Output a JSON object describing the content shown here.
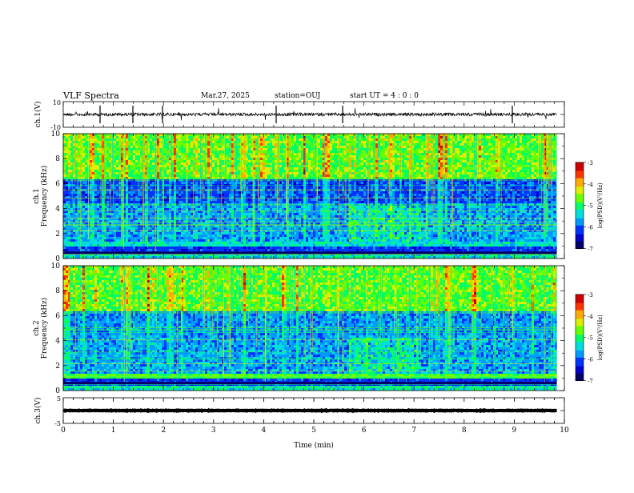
{
  "header": {
    "title": "VLF Spectra",
    "date": "Mar.27, 2025",
    "station": "station=OUJ",
    "start": "start  UT =   4 : 0  : 0"
  },
  "chart_data": [
    {
      "type": "line",
      "panel": "waveform-ch1",
      "ylabel": "ch.1(V)",
      "ylim": [
        -10,
        10
      ],
      "yticks": [
        "10",
        "-10"
      ],
      "xlim": [
        0,
        10
      ],
      "baseline": 0,
      "colors": {
        "trace": "#000000"
      }
    },
    {
      "type": "heatmap",
      "panel": "spectrogram-ch1",
      "ylabel": "ch.1 Frequency (kHz)",
      "ylim": [
        0,
        10
      ],
      "yticks": [
        0,
        2,
        4,
        6,
        8,
        10
      ],
      "xlim": [
        0,
        10
      ],
      "colorbar": {
        "label": "log(PSD)(V²/Hz)",
        "range": [
          -7,
          -3
        ],
        "ticks": [
          "-3",
          "-4",
          "-5",
          "-6",
          "-7"
        ]
      }
    },
    {
      "type": "heatmap",
      "panel": "spectrogram-ch2",
      "ylabel": "ch.2 Frequency (kHz)",
      "ylim": [
        0,
        10
      ],
      "yticks": [
        0,
        2,
        4,
        6,
        8,
        10
      ],
      "xlim": [
        0,
        10
      ],
      "colorbar": {
        "label": "log(PSD)(V²/Hz)",
        "range": [
          -7,
          -3
        ],
        "ticks": [
          "-3",
          "-4",
          "-5",
          "-6",
          "-7"
        ]
      }
    },
    {
      "type": "line",
      "panel": "waveform-ch3",
      "ylabel": "ch.3(V)",
      "ylim": [
        -5,
        5
      ],
      "yticks": [
        "5",
        "-5"
      ],
      "xlim": [
        0,
        10
      ],
      "baseline": 0,
      "colors": {
        "trace": "#000000"
      }
    }
  ],
  "xaxis": {
    "label": "Time  (min)",
    "ticks": [
      "0",
      "1",
      "2",
      "3",
      "4",
      "5",
      "6",
      "7",
      "8",
      "9",
      "10"
    ],
    "data_end_min": 9.85
  },
  "colormap": [
    "#000066",
    "#0000cc",
    "#0033ff",
    "#0099ff",
    "#00dddd",
    "#00ff66",
    "#66ff00",
    "#ddee00",
    "#ffaa00",
    "#ff3300",
    "#cc0000",
    "#ffffff"
  ]
}
